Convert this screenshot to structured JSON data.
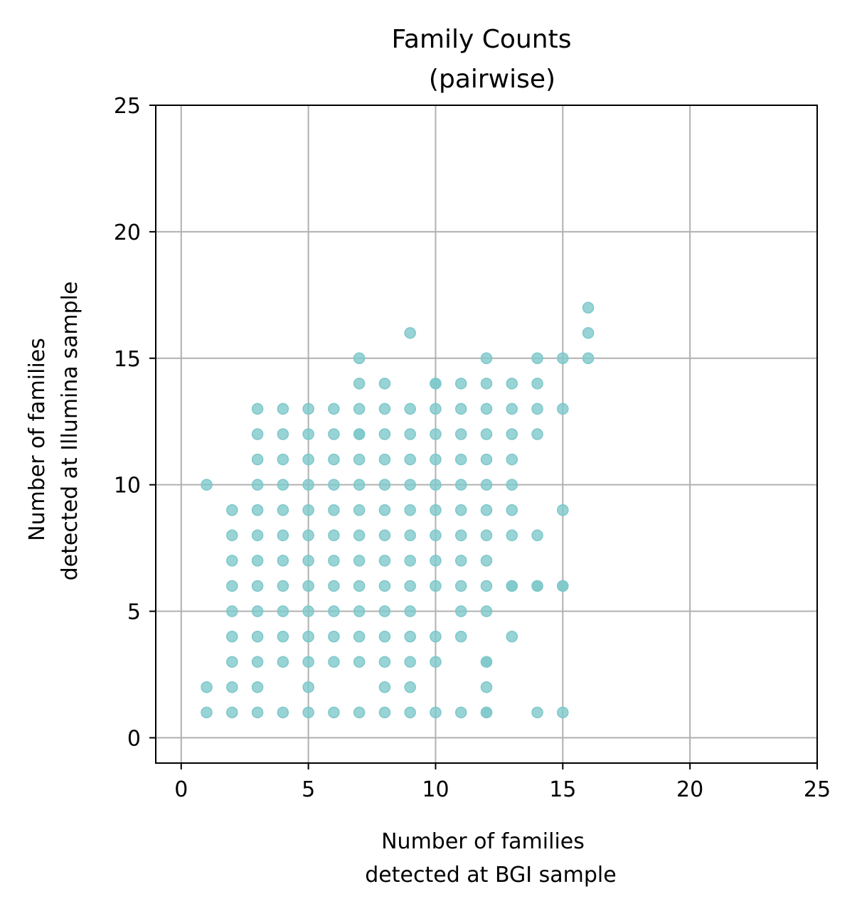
{
  "chart_data": {
    "type": "scatter",
    "title_lines": [
      "Family Counts",
      "(pairwise)"
    ],
    "xlabel_lines": [
      "Number of families",
      "detected at BGI sample"
    ],
    "ylabel_lines": [
      "Number of families",
      "detected at Illumina sample"
    ],
    "xlim": [
      -1,
      25
    ],
    "ylim": [
      -1,
      25
    ],
    "xticks": [
      0,
      5,
      10,
      15,
      20,
      25
    ],
    "yticks": [
      0,
      5,
      10,
      15,
      20,
      25
    ],
    "grid": true,
    "marker_color": "#7ec8ca",
    "x": [
      1,
      1,
      1,
      2,
      2,
      2,
      2,
      2,
      2,
      2,
      2,
      2,
      3,
      3,
      3,
      3,
      3,
      3,
      3,
      3,
      3,
      3,
      3,
      3,
      3,
      4,
      4,
      4,
      4,
      4,
      4,
      4,
      4,
      4,
      4,
      4,
      4,
      5,
      5,
      5,
      5,
      5,
      5,
      5,
      5,
      5,
      5,
      5,
      5,
      5,
      6,
      6,
      6,
      6,
      6,
      6,
      6,
      6,
      6,
      6,
      6,
      6,
      7,
      7,
      7,
      7,
      7,
      7,
      7,
      7,
      7,
      7,
      7,
      7,
      7,
      7,
      7,
      8,
      8,
      8,
      8,
      8,
      8,
      8,
      8,
      8,
      8,
      8,
      8,
      8,
      8,
      9,
      9,
      9,
      9,
      9,
      9,
      9,
      9,
      9,
      9,
      9,
      9,
      9,
      9,
      10,
      10,
      10,
      10,
      10,
      10,
      10,
      10,
      10,
      10,
      10,
      10,
      10,
      11,
      11,
      11,
      11,
      11,
      11,
      11,
      11,
      11,
      11,
      11,
      11,
      12,
      12,
      12,
      12,
      12,
      12,
      12,
      12,
      12,
      12,
      12,
      12,
      12,
      12,
      12,
      12,
      13,
      13,
      13,
      13,
      13,
      13,
      13,
      13,
      13,
      13,
      14,
      14,
      14,
      14,
      14,
      14,
      14,
      14,
      15,
      15,
      15,
      15,
      15,
      15,
      16,
      16,
      16
    ],
    "y": [
      1,
      2,
      10,
      1,
      2,
      3,
      4,
      5,
      6,
      7,
      8,
      9,
      1,
      2,
      3,
      4,
      5,
      6,
      7,
      8,
      9,
      10,
      11,
      12,
      13,
      1,
      3,
      4,
      5,
      6,
      7,
      8,
      9,
      10,
      11,
      12,
      13,
      1,
      2,
      3,
      4,
      5,
      6,
      7,
      8,
      9,
      10,
      11,
      12,
      13,
      1,
      3,
      4,
      5,
      6,
      7,
      8,
      9,
      10,
      11,
      12,
      13,
      1,
      3,
      4,
      5,
      6,
      7,
      8,
      9,
      10,
      11,
      12,
      13,
      14,
      15,
      12,
      1,
      2,
      3,
      4,
      5,
      6,
      7,
      8,
      9,
      10,
      11,
      12,
      13,
      14,
      1,
      2,
      3,
      4,
      5,
      6,
      7,
      8,
      9,
      10,
      11,
      12,
      13,
      16,
      1,
      3,
      4,
      6,
      7,
      8,
      9,
      10,
      11,
      12,
      13,
      14,
      14,
      1,
      4,
      5,
      6,
      7,
      8,
      9,
      10,
      11,
      12,
      13,
      14,
      1,
      2,
      3,
      5,
      6,
      7,
      8,
      9,
      10,
      11,
      12,
      13,
      14,
      15,
      1,
      3,
      4,
      6,
      8,
      9,
      10,
      11,
      12,
      13,
      14,
      6,
      1,
      6,
      8,
      12,
      13,
      14,
      15,
      6,
      1,
      6,
      9,
      13,
      15,
      6,
      15,
      16,
      17
    ]
  }
}
